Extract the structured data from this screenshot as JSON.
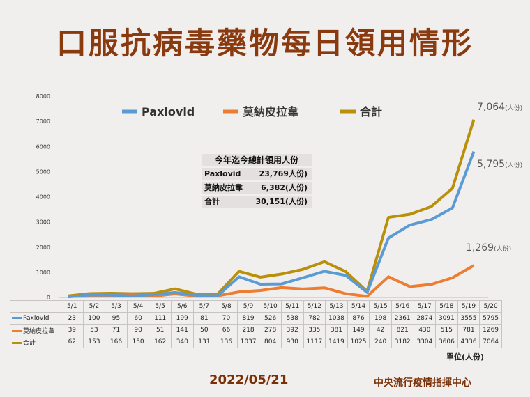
{
  "page": {
    "title": "口服抗病毒藥物每日領用情形",
    "date": "2022/05/21",
    "org": "中央流行疫情指揮中心",
    "unit": "單位(人份)"
  },
  "summary": {
    "title": "今年迄今總計領用人份",
    "rows": [
      {
        "label": "Paxlovid",
        "value": "23,769人份)"
      },
      {
        "label": "莫納皮拉韋",
        "value": "6,382(人份)"
      },
      {
        "label": "合計",
        "value": "30,151(人份)"
      }
    ]
  },
  "callouts": [
    {
      "value": "7,064",
      "unit": "(人份)"
    },
    {
      "value": "5,795",
      "unit": "(人份)"
    },
    {
      "value": "1,269",
      "unit": "(人份)"
    }
  ],
  "chart_data": {
    "type": "line",
    "categories": [
      "5/1",
      "5/2",
      "5/3",
      "5/4",
      "5/5",
      "5/6",
      "5/7",
      "5/8",
      "5/9",
      "5/10",
      "5/11",
      "5/12",
      "5/13",
      "5/14",
      "5/15",
      "5/16",
      "5/17",
      "5/18",
      "5/19",
      "5/20"
    ],
    "ylim": [
      0,
      8000
    ],
    "yticks": [
      "0",
      "1000",
      "2000",
      "3000",
      "4000",
      "5000",
      "6000",
      "7000",
      "8000"
    ],
    "legend_position": "top",
    "series": [
      {
        "name": "Paxlovid",
        "color": "#5b9bd5",
        "values": [
          23,
          100,
          95,
          60,
          111,
          199,
          81,
          70,
          819,
          526,
          538,
          782,
          1038,
          876,
          198,
          2361,
          2874,
          3091,
          3555,
          5795
        ]
      },
      {
        "name": "莫納皮拉韋",
        "color": "#ed7d31",
        "values": [
          39,
          53,
          71,
          90,
          51,
          141,
          50,
          66,
          218,
          278,
          392,
          335,
          381,
          149,
          42,
          821,
          430,
          515,
          781,
          1269
        ]
      },
      {
        "name": "合計",
        "color": "#b8900a",
        "values": [
          62,
          153,
          166,
          150,
          162,
          340,
          131,
          136,
          1037,
          804,
          930,
          1117,
          1419,
          1025,
          240,
          3182,
          3304,
          3606,
          4336,
          7064
        ]
      }
    ]
  }
}
